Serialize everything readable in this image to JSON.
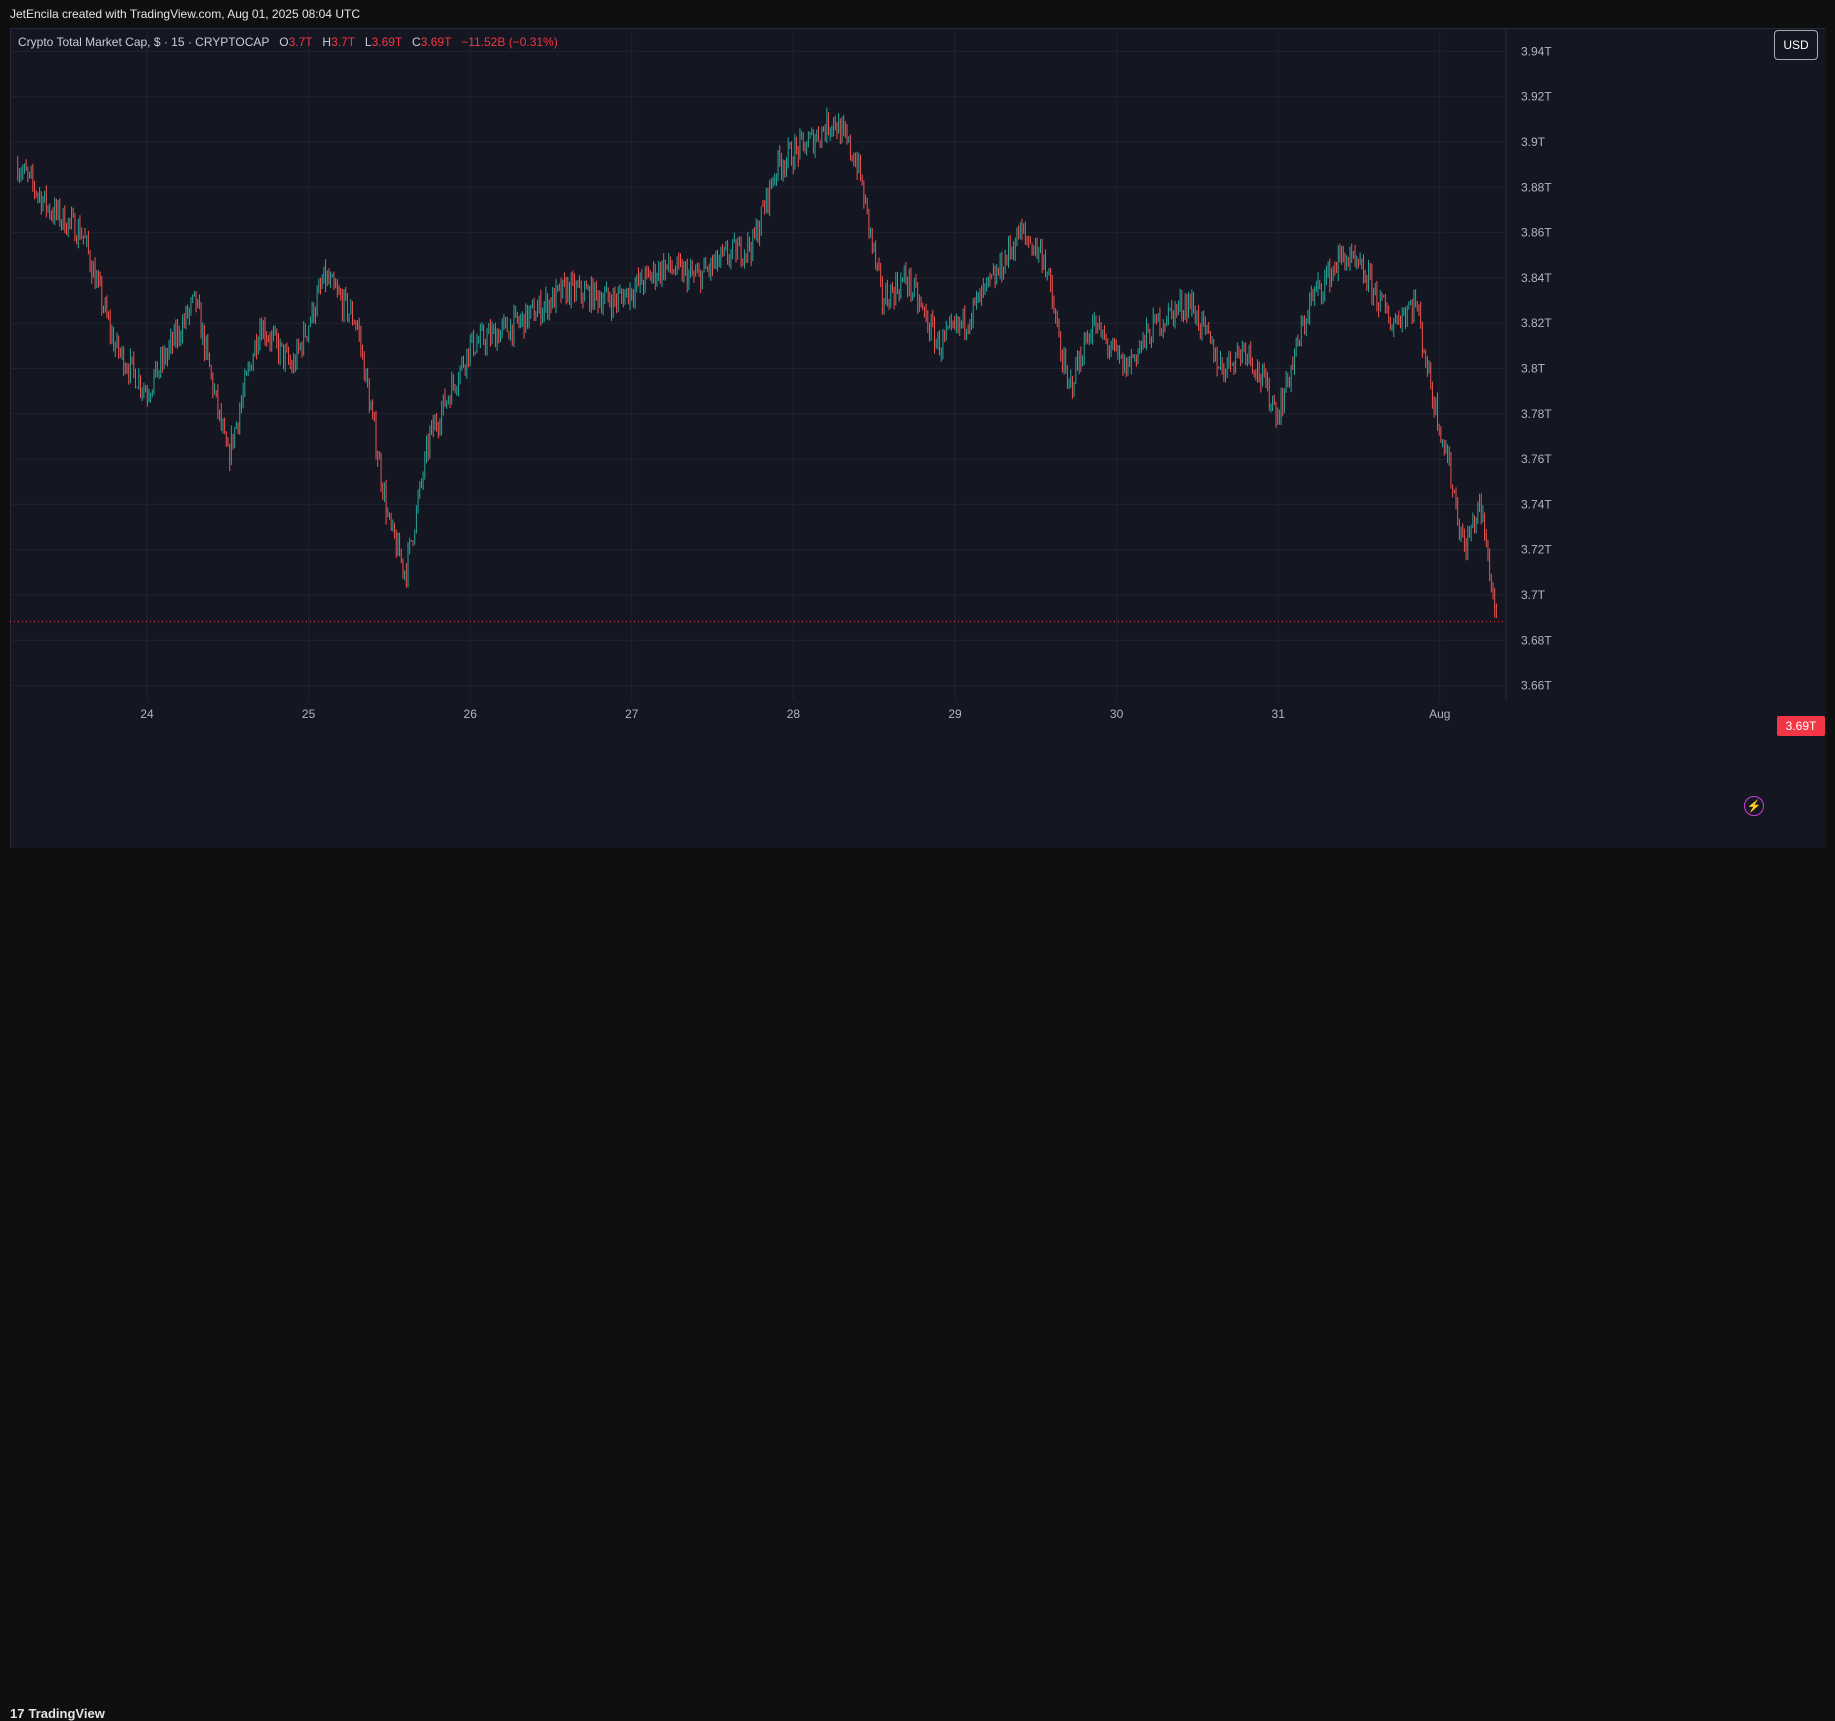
{
  "header": {
    "credit": "JetEncila created with TradingView.com, Aug 01, 2025 08:04 UTC"
  },
  "legend": {
    "symbol": "Crypto Total Market Cap, $ · 15 · CRYPTOCAP",
    "o_label": "O",
    "o_value": "3.7T",
    "h_label": "H",
    "h_value": "3.7T",
    "l_label": "L",
    "l_value": "3.69T",
    "c_label": "C",
    "c_value": "3.69T",
    "change": "−11.52B (−0.31%)"
  },
  "currency_button": "USD",
  "last_price_label": "3.69T",
  "footer": {
    "brand": "TradingView",
    "brand_mark": "17"
  },
  "colors": {
    "up": "#26a69a",
    "down": "#ef5350",
    "background": "#141722",
    "grid": "#1f2230",
    "accent": "#f23645"
  },
  "icons": {
    "alert": "lightning-bolt-icon"
  },
  "chart_data": {
    "type": "line",
    "title": "Crypto Total Market Cap",
    "interval": "15",
    "x_tick_labels": [
      "24",
      "25",
      "26",
      "27",
      "28",
      "29",
      "30",
      "31",
      "Aug"
    ],
    "y_tick_labels": [
      "3.94T",
      "3.92T",
      "3.9T",
      "3.88T",
      "3.86T",
      "3.84T",
      "3.82T",
      "3.8T",
      "3.78T",
      "3.76T",
      "3.74T",
      "3.72T",
      "3.7T",
      "3.68T",
      "3.66T"
    ],
    "ylim": [
      3.65,
      3.945
    ],
    "xlim": [
      23.2,
      32.4
    ],
    "grid": true,
    "last_price": 3.69,
    "series": [
      {
        "x": [
          23.2,
          23.4,
          23.6,
          23.8,
          24.0,
          24.3,
          24.5,
          24.7,
          24.9,
          25.1,
          25.3,
          25.5,
          25.6,
          25.75,
          26.0,
          26.3,
          26.6,
          26.9,
          27.2,
          27.4,
          27.6,
          27.75,
          27.9,
          28.1,
          28.25,
          28.4,
          28.55,
          28.7,
          28.9,
          29.05,
          29.25,
          29.4,
          29.55,
          29.7,
          29.85,
          30.05,
          30.25,
          30.45,
          30.65,
          30.8,
          31.0,
          31.2,
          31.4,
          31.55,
          31.7,
          31.85,
          31.95,
          32.05,
          32.15,
          32.25,
          32.35
        ],
        "y": [
          3.89,
          3.87,
          3.86,
          3.81,
          3.79,
          3.83,
          3.76,
          3.82,
          3.8,
          3.84,
          3.82,
          3.73,
          3.71,
          3.77,
          3.81,
          3.82,
          3.835,
          3.83,
          3.845,
          3.84,
          3.85,
          3.855,
          3.89,
          3.9,
          3.91,
          3.89,
          3.83,
          3.84,
          3.81,
          3.82,
          3.84,
          3.86,
          3.85,
          3.79,
          3.82,
          3.8,
          3.82,
          3.83,
          3.8,
          3.81,
          3.78,
          3.83,
          3.85,
          3.84,
          3.82,
          3.83,
          3.79,
          3.76,
          3.72,
          3.74,
          3.69
        ],
        "candle_count": 880
      }
    ]
  }
}
